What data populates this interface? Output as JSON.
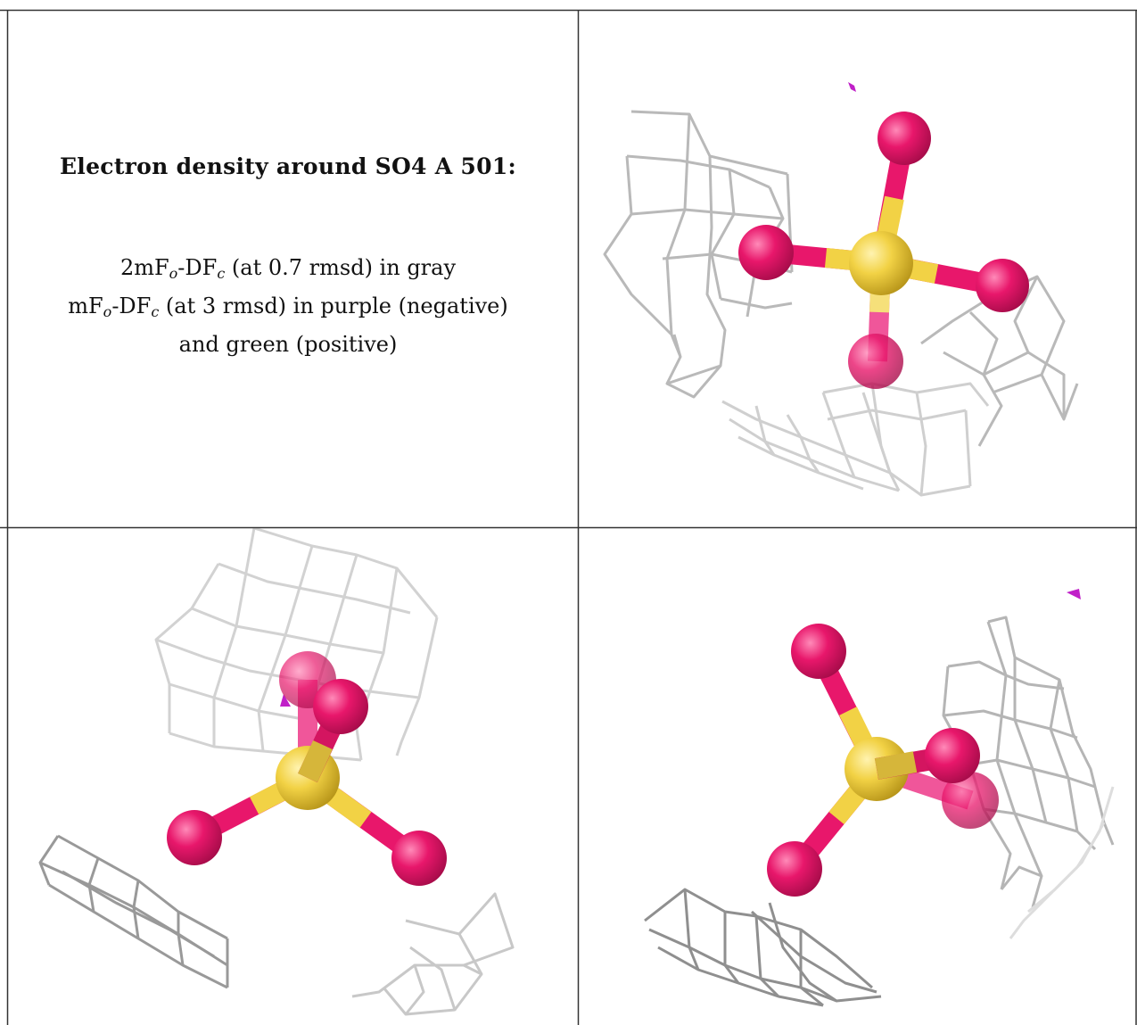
{
  "caption": {
    "title": "Electron density around SO4 A 501:",
    "line1": {
      "a": "2mF",
      "b": "o",
      "c": "-DF",
      "d": "c",
      "e": " (at 0.7 rmsd) in gray"
    },
    "line2": {
      "a": "mF",
      "b": "o",
      "c": "-DF",
      "d": "c",
      "e": " (at 3 rmsd) in purple (negative)"
    },
    "line3": "and green (positive)"
  },
  "colors": {
    "oxygen": "#e8176b",
    "sulfur": "#f2d245",
    "mesh": "#b8b8b8",
    "negative_density": "#c020c8",
    "border": "#333333"
  },
  "views": [
    "view-1",
    "view-2",
    "view-3"
  ]
}
